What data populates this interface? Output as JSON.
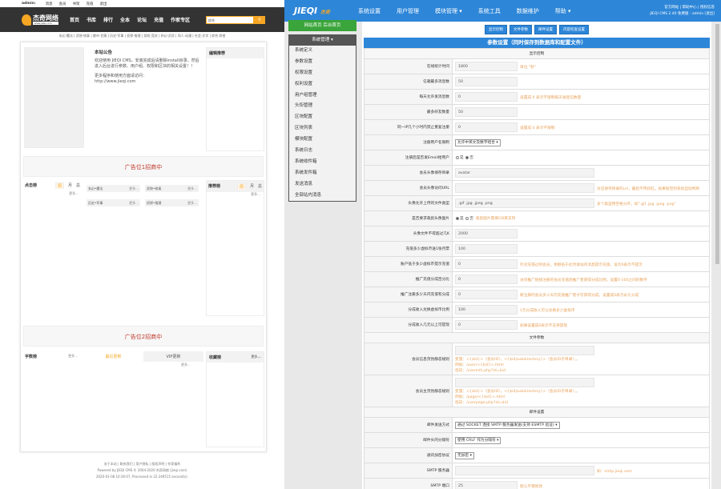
{
  "front": {
    "topbar": [
      "admin:",
      "消息",
      "会员",
      "书架",
      "充值",
      "退出"
    ],
    "logo_text": "杰奇网络",
    "logo_sub": "www.jieqi.com",
    "nav": [
      "首页",
      "书库",
      "排行",
      "全本",
      "论坛",
      "充值",
      "作家专区"
    ],
    "search_value": "综合",
    "categories": "玄幻·魔法 | 武侠·修真 | 都市·言情 | 历史·军事 | 侦探·推理 | 游戏·竞技 | 科幻·灵异 | 同人·动漫 | 社会·文学 | 综合·其他",
    "notice_title": "本站公告",
    "notice_text": "欢迎使用 JIEQI CMS，安装完成后请删除install目录。然后进入后台进行参数、用户组、权限和区块的相关设置！！",
    "notice_text2": "更多程序和使用方面请访问：",
    "notice_link": "http://www.jieqi.com",
    "editor_pick": "编辑推荐",
    "ad1": "广告位1招商中",
    "ad2": "广告位2招商中",
    "click_rank": "点击榜",
    "recommend_rank": "推荐榜",
    "tabs": [
      "周",
      "月",
      "总"
    ],
    "more": "更多...",
    "lists": [
      "玄幻•魔法",
      "武侠•修真",
      "历史•军事",
      "侦探•推理"
    ],
    "words_rank": "字数榜",
    "latest": "最近更新",
    "vip": "VIP更新",
    "fav_rank": "收藏榜",
    "footer_links": "关于本站 | 联系我们 | 用户隐私 | 版权声明 | 作家福利",
    "powered": "Powered by JIEQI CMS © 2004-2020 杰奇网络 (jieqi.com)",
    "processed": "2020-01-08 10:36:07, Processed in 22.249515 second(s)."
  },
  "admin": {
    "logo": "JIEQI",
    "logo_cn": "杰奇",
    "logo_cms": "CMS",
    "nav": [
      "系统设置",
      "用户管理",
      "模块管理 ▾",
      "系统工具",
      "数据维护",
      "帮助 ▾"
    ],
    "links": "官方网站 | 帮助中心 | 授权信息",
    "version": "JIEQI CMS 2.40 免费版 - admin [退出]",
    "home_buttons": "网站首页  后台首页",
    "side_title": "系统管理 ▾",
    "side_items": [
      "系统定义",
      "参数设置",
      "权限设置",
      "权利设置",
      "用户组管理",
      "头衔管理",
      "区块配置",
      "区块列表",
      "模块配置",
      "系统日志",
      "系统收件箱",
      "系统发件箱",
      "发送消息",
      "全部站内消息"
    ],
    "tab_buttons": [
      "显示控制",
      "文件参数",
      "邮件设置",
      "内容检查设置"
    ],
    "form_title": "参数设置（同时保存到数据库和配置文件）",
    "sections": {
      "display": "显示控制",
      "file": "文件参数",
      "mail": "邮件设置"
    },
    "rows": [
      {
        "label": "在线统计时间",
        "value": "1800",
        "hint": "单位 \"秒\""
      },
      {
        "label": "信箱最多消息数",
        "value": "50",
        "hint": ""
      },
      {
        "label": "每天允许发消息数",
        "value": "0",
        "hint": "设置成 0 表示不限制每天发短信数量"
      },
      {
        "label": "最多好友数量",
        "value": "50",
        "hint": ""
      },
      {
        "label": "同一IP几个小时内禁止重复注册",
        "value": "0",
        "hint": "设置成 0 表示不限制"
      },
      {
        "label": "注册用户名限制",
        "select": "允许中英文及数字组合"
      },
      {
        "label": "注册后是否发Email给用户",
        "radio": [
          "是",
          "否"
        ],
        "checked": 1
      },
      {
        "label": "会员头像保存目录",
        "value": "avatar",
        "wide": true,
        "hint": ""
      },
      {
        "label": "会员头像访问URL",
        "value": "",
        "wide": true,
        "hint": "对应保存目录的url，最后不带斜杠。如果留空则系统自动判断"
      },
      {
        "label": "头像允许上传的文件类型",
        "value": ".gif .jpg .jpeg .png",
        "wide": true,
        "hint": "多个类型用空格分开，如\".gif .jpg .jpeg .png\""
      },
      {
        "label": "是否要求裁剪头像图片",
        "radio": [
          "是",
          "否"
        ],
        "checked": 0,
        "hint": "裁剪图片需要GD库支持"
      },
      {
        "label": "头像文件不得超过几K",
        "value": "2000",
        "hint": ""
      },
      {
        "label": "充值多少虚拟币送1张月票",
        "value": "100",
        "hint": ""
      },
      {
        "label": "账户低于多少虚拟币提示充值",
        "value": "0",
        "hint": "针对充值过的会员，余额低于此时发站内消息提示充值，设为0表示不提示"
      },
      {
        "label": "推广充值分成百分比",
        "value": "0",
        "hint": "访问推广链接注册的会员充值后推广者获得分成比例，设置0-100之间的数字"
      },
      {
        "label": "推广注册多少天内充值有分成",
        "value": "0",
        "hint": "新注册的会员多少天内充值推广者才可获得分成，设置成0表示永久分成"
      },
      {
        "label": "分成收入兑换虚拟币比例",
        "value": "100",
        "hint": "1元分成收入可以兑换多少虚拟币"
      },
      {
        "label": "分成收入几元以上可提现",
        "value": "0",
        "hint": "如果设置成0表示不支持提现"
      }
    ],
    "file_rows": [
      {
        "label": "会员信息页伪静态规则",
        "lines": [
          "变量：<{$id}>（会员ID），<{$id|subdirectory}>（会员ID子目录），。",
          "例如：/user/<{$id}>.html",
          "指向：/userinfo.php?id=$id"
        ]
      },
      {
        "label": "会员主页伪静态规则",
        "lines": [
          "变量：<{$id}>（会员ID），<{$id|subdirectory}>（会员ID子目录），。",
          "例如：/page/<{$id}>.html",
          "指向：/userpage.php?id=$id"
        ]
      }
    ],
    "mail_rows": [
      {
        "label": "邮件发送方式",
        "select": "通过 SOCKET 连接 SMTP 服务器发送(支持 ESMTP 验证)"
      },
      {
        "label": "邮件头的分隔符",
        "select": "使用 CRLF 作为分隔符"
      },
      {
        "label": "通讯加密协议",
        "select": "无加密"
      },
      {
        "label": "SMTP 服务器",
        "value": "",
        "wide": true,
        "hint": "如：smtp.jieqi.com"
      },
      {
        "label": "SMTP 端口",
        "value": "25",
        "hint": "默认不需修改"
      }
    ]
  }
}
